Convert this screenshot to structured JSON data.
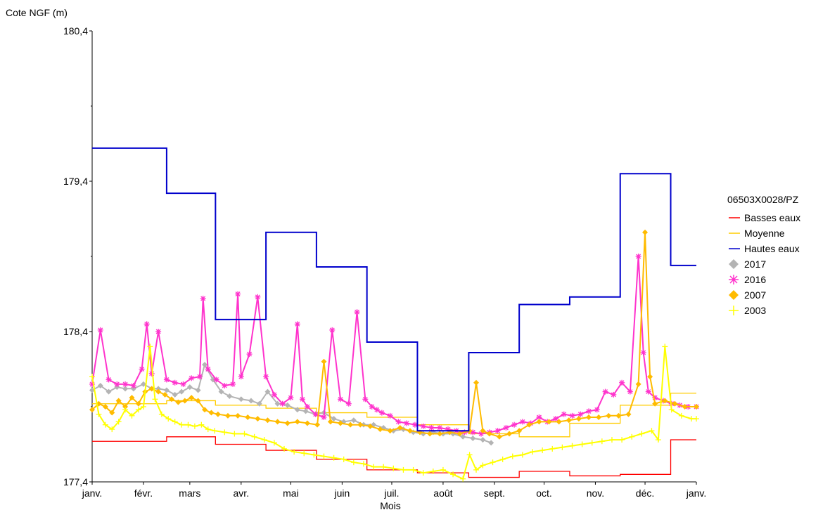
{
  "chart_data": {
    "type": "line",
    "ylabel": "Cote NGF (m)",
    "xlabel": "Mois",
    "ylim": [
      177.4,
      180.4
    ],
    "yticks": [
      "177,4",
      "178,4",
      "179,4",
      "180,4"
    ],
    "yticks_values": [
      177.4,
      178.4,
      179.4,
      180.4
    ],
    "months": [
      "janv.",
      "févr.",
      "mars",
      "avr.",
      "mai",
      "juin",
      "juil.",
      "août",
      "sept.",
      "oct.",
      "nov.",
      "déc.",
      "janv."
    ],
    "x_unit": "day of year",
    "xlim": [
      0,
      365
    ],
    "grid": false,
    "legend_position": "right",
    "legend_title": "06503X0028/PZ",
    "series": [
      {
        "name": "Basses eaux",
        "style": "step",
        "color": "#ff0000",
        "values": [
          177.67,
          177.7,
          177.65,
          177.61,
          177.55,
          177.48,
          177.46,
          177.43,
          177.47,
          177.44,
          177.45,
          177.68
        ]
      },
      {
        "name": "Moyenne",
        "style": "step",
        "color": "#ffcc00",
        "values": [
          177.92,
          177.94,
          177.91,
          177.89,
          177.86,
          177.83,
          177.78,
          177.72,
          177.7,
          177.79,
          177.91,
          177.99
        ]
      },
      {
        "name": "Hautes eaux",
        "style": "step",
        "color": "#0000cc",
        "values": [
          179.62,
          179.32,
          178.48,
          179.06,
          178.83,
          178.33,
          177.74,
          178.26,
          178.58,
          178.63,
          179.45,
          178.84
        ]
      },
      {
        "name": "2017",
        "style": "marker",
        "marker": "diamond",
        "color": "#b4b4b4",
        "x": [
          0,
          5,
          10,
          15,
          20,
          25,
          31,
          36,
          40,
          45,
          50,
          54,
          59,
          64,
          68,
          73,
          78,
          83,
          90,
          96,
          101,
          106,
          112,
          118,
          124,
          129,
          135,
          140,
          146,
          152,
          158,
          164,
          170,
          176,
          182,
          188,
          194,
          200,
          206,
          212,
          218,
          224,
          230,
          236,
          241
        ],
        "values": [
          178.01,
          178.04,
          178.0,
          178.03,
          178.02,
          178.02,
          178.05,
          178.02,
          178.02,
          178.01,
          177.98,
          178.0,
          178.03,
          178.01,
          178.18,
          178.08,
          178.0,
          177.97,
          177.95,
          177.94,
          177.92,
          178.0,
          177.92,
          177.91,
          177.88,
          177.87,
          177.85,
          177.86,
          177.82,
          177.8,
          177.81,
          177.78,
          177.78,
          177.76,
          177.74,
          177.75,
          177.73,
          177.72,
          177.73,
          177.72,
          177.72,
          177.7,
          177.69,
          177.68,
          177.66
        ]
      },
      {
        "name": "2016",
        "style": "marker",
        "marker": "star",
        "color": "#ff33cc",
        "x": [
          0,
          5,
          10,
          15,
          20,
          25,
          30,
          33,
          36,
          40,
          45,
          50,
          55,
          60,
          65,
          67,
          70,
          75,
          80,
          85,
          88,
          90,
          95,
          100,
          105,
          110,
          115,
          120,
          124,
          127,
          130,
          135,
          140,
          145,
          150,
          155,
          160,
          165,
          169,
          172,
          175,
          180,
          185,
          190,
          195,
          200,
          205,
          210,
          215,
          220,
          225,
          230,
          235,
          240,
          245,
          250,
          255,
          260,
          265,
          270,
          275,
          280,
          285,
          290,
          295,
          300,
          305,
          310,
          315,
          320,
          325,
          330,
          333,
          336,
          340,
          345,
          350,
          355,
          360,
          365
        ],
        "values": [
          178.05,
          178.41,
          178.08,
          178.05,
          178.05,
          178.04,
          178.15,
          178.45,
          178.12,
          178.4,
          178.08,
          178.06,
          178.05,
          178.09,
          178.1,
          178.62,
          178.15,
          178.08,
          178.04,
          178.05,
          178.65,
          178.1,
          178.25,
          178.63,
          178.1,
          177.98,
          177.92,
          177.96,
          178.45,
          177.95,
          177.9,
          177.85,
          177.83,
          178.41,
          177.95,
          177.92,
          178.53,
          177.95,
          177.9,
          177.88,
          177.86,
          177.84,
          177.8,
          177.79,
          177.78,
          177.77,
          177.76,
          177.76,
          177.75,
          177.74,
          177.73,
          177.73,
          177.72,
          177.73,
          177.74,
          177.76,
          177.78,
          177.8,
          177.79,
          177.83,
          177.8,
          177.82,
          177.85,
          177.84,
          177.85,
          177.87,
          177.88,
          178.0,
          177.98,
          178.06,
          178.0,
          178.9,
          178.26,
          178.0,
          177.96,
          177.94,
          177.92,
          177.91,
          177.9,
          177.9
        ]
      },
      {
        "name": "2007",
        "style": "marker",
        "marker": "diamond",
        "color": "#ffbb00",
        "x": [
          0,
          4,
          8,
          12,
          16,
          20,
          24,
          28,
          32,
          36,
          40,
          44,
          48,
          52,
          56,
          60,
          64,
          68,
          72,
          76,
          82,
          88,
          94,
          100,
          106,
          112,
          118,
          124,
          130,
          136,
          140,
          144,
          150,
          156,
          162,
          168,
          174,
          180,
          186,
          192,
          198,
          204,
          210,
          216,
          222,
          228,
          232,
          236,
          240,
          246,
          252,
          258,
          264,
          270,
          276,
          282,
          288,
          294,
          300,
          306,
          312,
          318,
          324,
          330,
          334,
          337,
          340,
          346,
          352,
          358,
          365
        ],
        "values": [
          177.88,
          177.92,
          177.9,
          177.86,
          177.94,
          177.9,
          177.96,
          177.92,
          178.0,
          178.02,
          178.0,
          177.98,
          177.95,
          177.93,
          177.94,
          177.96,
          177.94,
          177.88,
          177.86,
          177.85,
          177.84,
          177.84,
          177.83,
          177.82,
          177.81,
          177.8,
          177.79,
          177.8,
          177.79,
          177.78,
          178.2,
          177.8,
          177.79,
          177.78,
          177.78,
          177.77,
          177.75,
          177.74,
          177.76,
          177.74,
          177.73,
          177.72,
          177.72,
          177.73,
          177.72,
          177.74,
          178.06,
          177.74,
          177.72,
          177.7,
          177.72,
          177.74,
          177.78,
          177.8,
          177.8,
          177.8,
          177.81,
          177.82,
          177.83,
          177.83,
          177.84,
          177.84,
          177.85,
          178.05,
          179.06,
          178.1,
          177.92,
          177.94,
          177.92,
          177.9,
          177.9
        ]
      },
      {
        "name": "2003",
        "style": "marker",
        "marker": "plus",
        "color": "#ffff00",
        "x": [
          0,
          4,
          8,
          12,
          16,
          20,
          24,
          28,
          31,
          35,
          38,
          42,
          46,
          50,
          54,
          58,
          62,
          66,
          70,
          74,
          80,
          86,
          92,
          98,
          104,
          110,
          116,
          122,
          128,
          134,
          140,
          146,
          152,
          158,
          164,
          170,
          176,
          182,
          188,
          194,
          200,
          206,
          212,
          218,
          224,
          228,
          232,
          236,
          242,
          248,
          254,
          260,
          266,
          272,
          278,
          284,
          290,
          296,
          302,
          308,
          314,
          320,
          326,
          332,
          338,
          342,
          346,
          350,
          356,
          362,
          365
        ],
        "values": [
          178.1,
          177.85,
          177.78,
          177.75,
          177.8,
          177.88,
          177.84,
          177.88,
          177.9,
          178.3,
          177.95,
          177.85,
          177.82,
          177.8,
          177.78,
          177.78,
          177.77,
          177.78,
          177.75,
          177.74,
          177.73,
          177.72,
          177.72,
          177.7,
          177.68,
          177.66,
          177.62,
          177.6,
          177.59,
          177.58,
          177.57,
          177.56,
          177.55,
          177.53,
          177.52,
          177.5,
          177.5,
          177.49,
          177.48,
          177.48,
          177.46,
          177.47,
          177.48,
          177.45,
          177.42,
          177.58,
          177.48,
          177.51,
          177.53,
          177.55,
          177.57,
          177.58,
          177.6,
          177.61,
          177.62,
          177.63,
          177.64,
          177.65,
          177.66,
          177.67,
          177.68,
          177.68,
          177.7,
          177.72,
          177.74,
          177.68,
          178.3,
          177.88,
          177.84,
          177.82,
          177.82
        ]
      }
    ]
  }
}
